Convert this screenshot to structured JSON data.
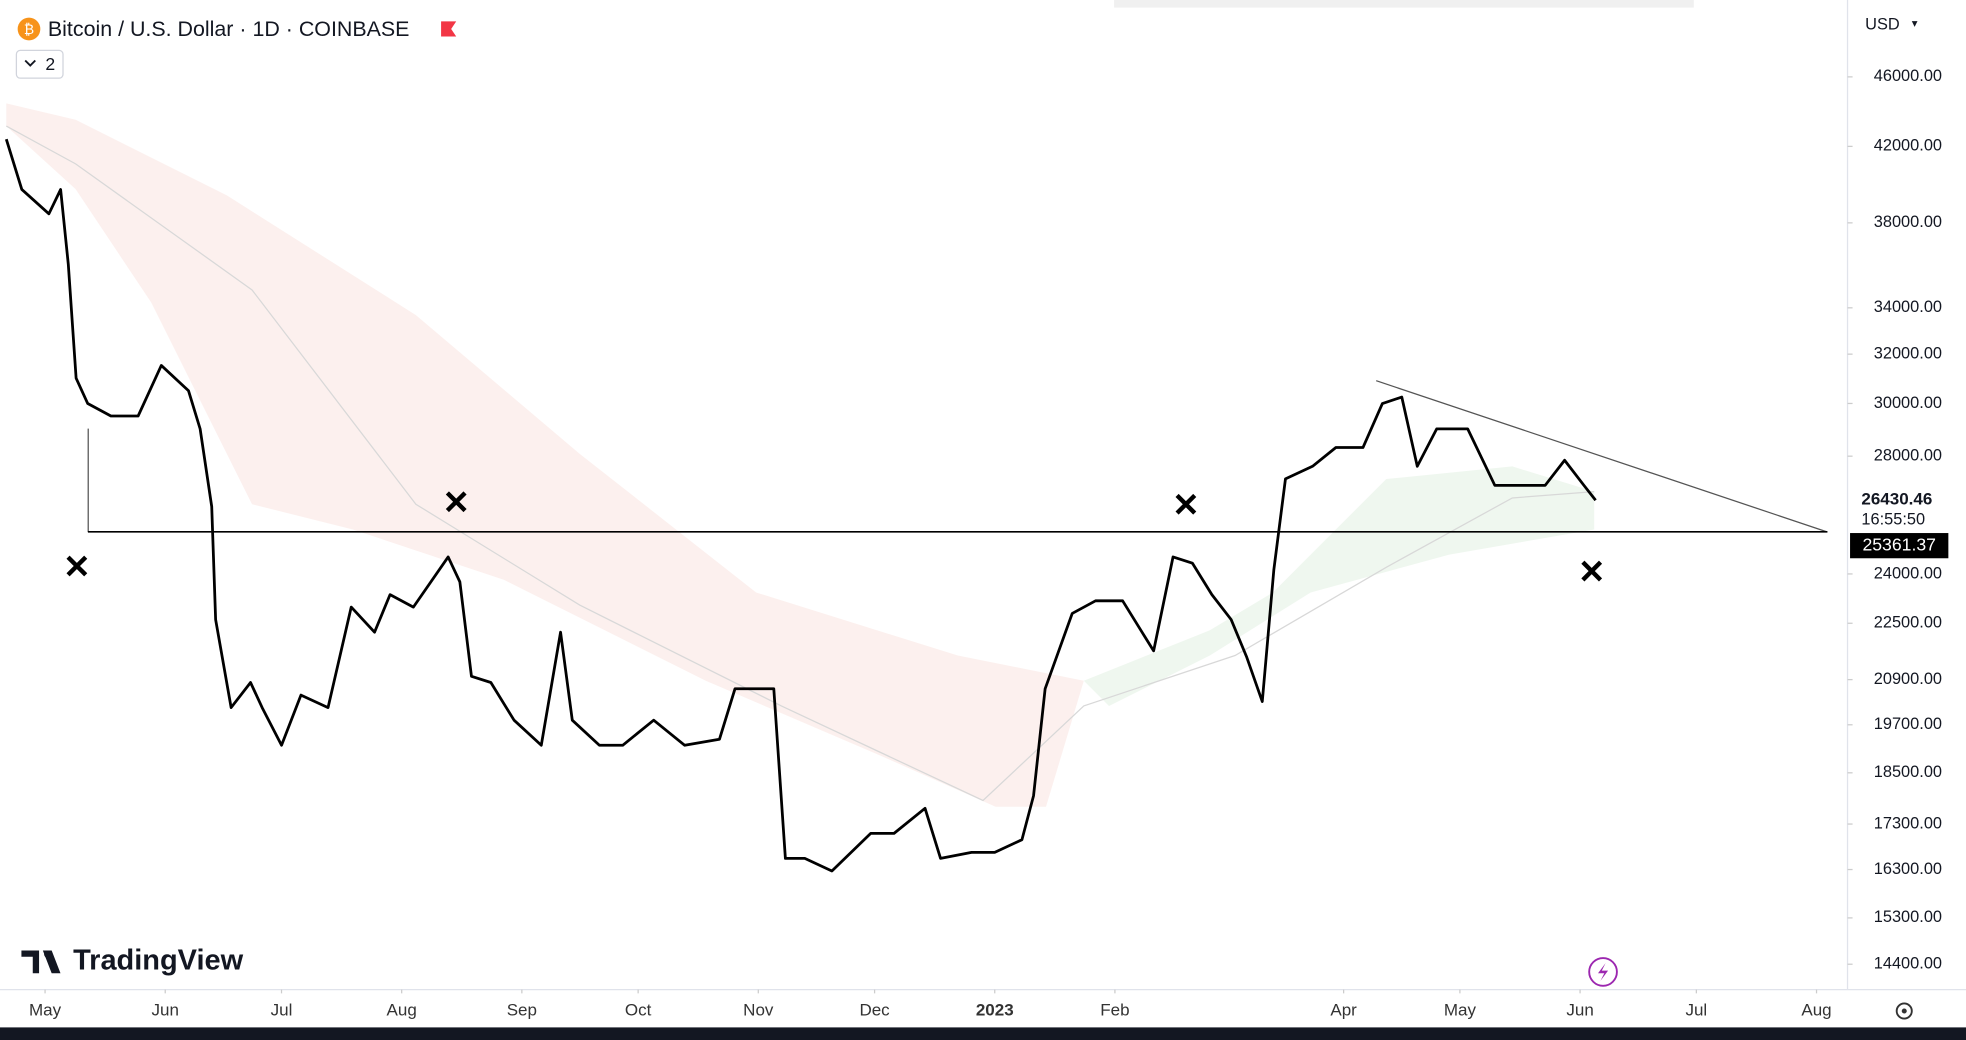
{
  "chart_data": {
    "type": "line",
    "title": "Bitcoin / U.S. Dollar · 1D · COINBASE",
    "indicators_collapsed": "2",
    "currency": "USD",
    "brand": "TradingView",
    "log_scale": true,
    "color": "#000000",
    "x": [
      -10,
      -6,
      1,
      4,
      6,
      8,
      11,
      17,
      24,
      30,
      37,
      40,
      43,
      44,
      48,
      53,
      56,
      61,
      66,
      73,
      79,
      85,
      89,
      95,
      104,
      107,
      110,
      115,
      121,
      128,
      133,
      136,
      143,
      149,
      157,
      165,
      174,
      178,
      185,
      188,
      191,
      196,
      203,
      213,
      219,
      227,
      231,
      239,
      245,
      252,
      255,
      258,
      265,
      271,
      278,
      283,
      286,
      291,
      296,
      301,
      306,
      310,
      314,
      317,
      320,
      327,
      333,
      340,
      345,
      350,
      354,
      359,
      367,
      374,
      380,
      387,
      392,
      397,
      400
    ],
    "values": [
      42400,
      39700,
      38450,
      39700,
      35990,
      31010,
      30000,
      29510,
      29510,
      31530,
      30500,
      29020,
      26210,
      22610,
      20150,
      20820,
      20150,
      19180,
      20480,
      20150,
      22980,
      22240,
      23360,
      22980,
      24540,
      23750,
      20990,
      20820,
      19820,
      19180,
      22240,
      19820,
      19180,
      19180,
      19820,
      19180,
      19330,
      20650,
      20650,
      20650,
      16540,
      16540,
      16270,
      17090,
      17090,
      17660,
      16540,
      16670,
      16670,
      16950,
      17950,
      20650,
      22790,
      23170,
      23170,
      22240,
      21700,
      24540,
      24340,
      23360,
      22610,
      21520,
      20310,
      24140,
      27180,
      27630,
      28320,
      28320,
      30000,
      30250,
      27630,
      29020,
      29020,
      26950,
      26950,
      26950,
      27850,
      26950,
      26430.46
    ],
    "xlim": [
      -10,
      465
    ],
    "xticks": [
      {
        "value": 0,
        "label": "May"
      },
      {
        "value": 31,
        "label": "Jun"
      },
      {
        "value": 61,
        "label": "Jul"
      },
      {
        "value": 92,
        "label": "Aug"
      },
      {
        "value": 123,
        "label": "Sep"
      },
      {
        "value": 153,
        "label": "Oct"
      },
      {
        "value": 184,
        "label": "Nov"
      },
      {
        "value": 214,
        "label": "Dec"
      },
      {
        "value": 245,
        "label": "2023"
      },
      {
        "value": 276,
        "label": "Feb"
      },
      {
        "value": 335,
        "label": "Apr"
      },
      {
        "value": 365,
        "label": "May"
      },
      {
        "value": 396,
        "label": "Jun"
      },
      {
        "value": 426,
        "label": "Jul"
      },
      {
        "value": 457,
        "label": "Aug"
      }
    ],
    "ylim": [
      13930,
      50870
    ],
    "yticks": [
      {
        "value": 46000,
        "label": "46000.00"
      },
      {
        "value": 42000,
        "label": "42000.00"
      },
      {
        "value": 38000,
        "label": "38000.00"
      },
      {
        "value": 34000,
        "label": "34000.00"
      },
      {
        "value": 32000,
        "label": "32000.00"
      },
      {
        "value": 30000,
        "label": "30000.00"
      },
      {
        "value": 28000,
        "label": "28000.00"
      },
      {
        "value": 24000,
        "label": "24000.00"
      },
      {
        "value": 22500,
        "label": "22500.00"
      },
      {
        "value": 20900,
        "label": "20900.00"
      },
      {
        "value": 19700,
        "label": "19700.00"
      },
      {
        "value": 18500,
        "label": "18500.00"
      },
      {
        "value": 17300,
        "label": "17300.00"
      },
      {
        "value": 16300,
        "label": "16300.00"
      },
      {
        "value": 15300,
        "label": "15300.00"
      },
      {
        "value": 14400,
        "label": "14400.00"
      }
    ],
    "last_price": 26430.46,
    "countdown": "16:55:50",
    "level": 25361.37
  }
}
